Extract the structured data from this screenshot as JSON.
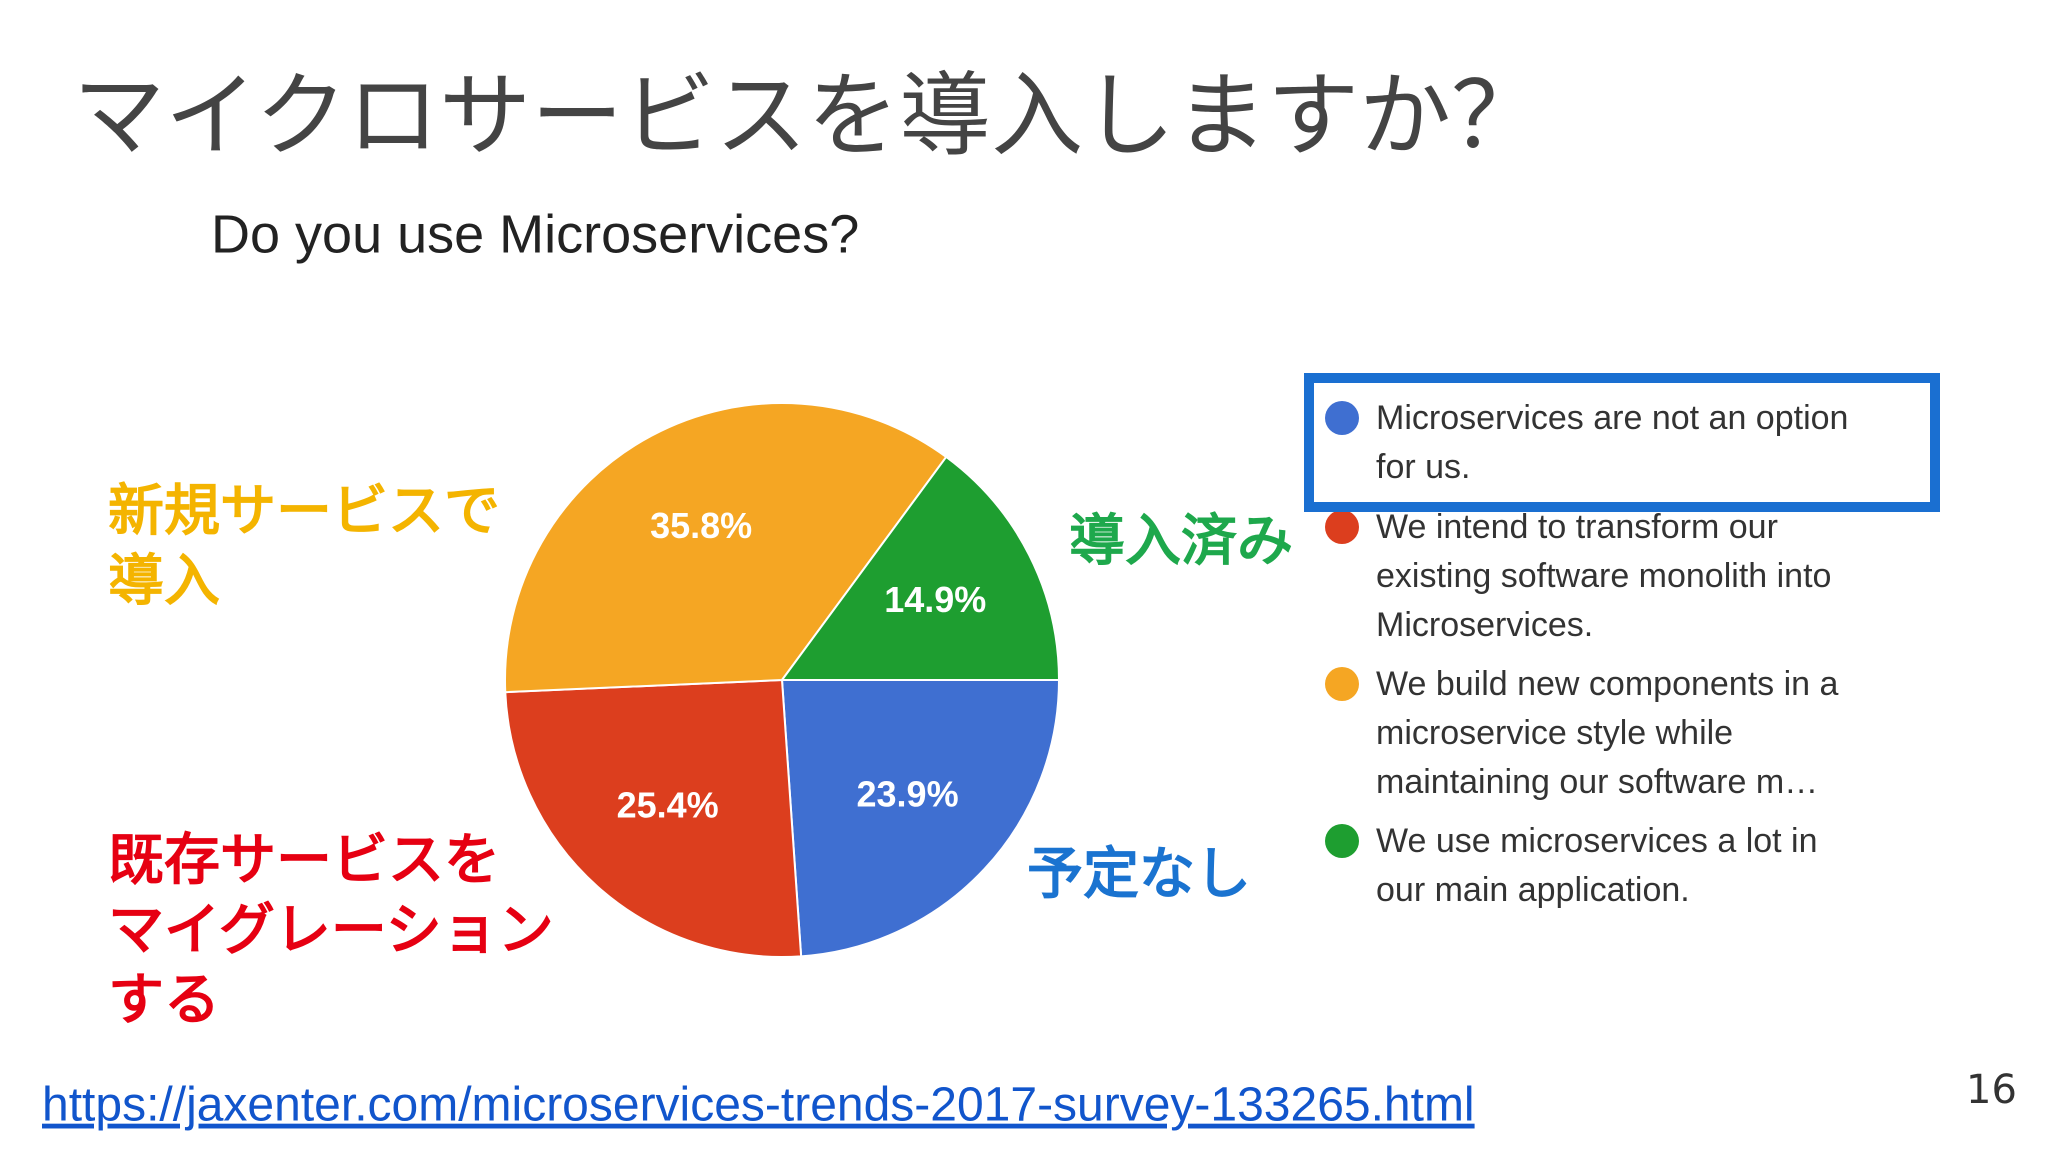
{
  "title": "マイクロサービスを導入しますか？",
  "chart_data": {
    "type": "pie",
    "title": "Do you use Microservices?",
    "categories": [
      "Microservices are not an option for us.",
      "We intend to transform our existing software monolith into Microservices.",
      "We build new components in a microservice style while maintaining our software m…",
      "We use microservices a lot in our main application."
    ],
    "values": [
      23.9,
      25.4,
      35.8,
      14.9
    ],
    "value_labels": [
      "23.9%",
      "25.4%",
      "35.8%",
      "14.9%"
    ],
    "colors": [
      "#3f6fd1",
      "#dc3e1e",
      "#f5a623",
      "#1e9e30"
    ],
    "start_angle": 0,
    "direction": "clockwise",
    "legend": "right",
    "highlighted": 0
  },
  "annotations": [
    {
      "lines": [
        "新規サービスで",
        "導入"
      ],
      "color": "#f4b400"
    },
    {
      "lines": [
        "導入済み"
      ],
      "color": "#1ea84c"
    },
    {
      "lines": [
        "既存サービスを",
        "マイグレーション",
        "する"
      ],
      "color": "#e60012"
    },
    {
      "lines": [
        "予定なし"
      ],
      "color": "#1a73d0"
    }
  ],
  "source_url": "https://jaxenter.com/microservices-trends-2017-survey-133265.html",
  "page_number": 16
}
